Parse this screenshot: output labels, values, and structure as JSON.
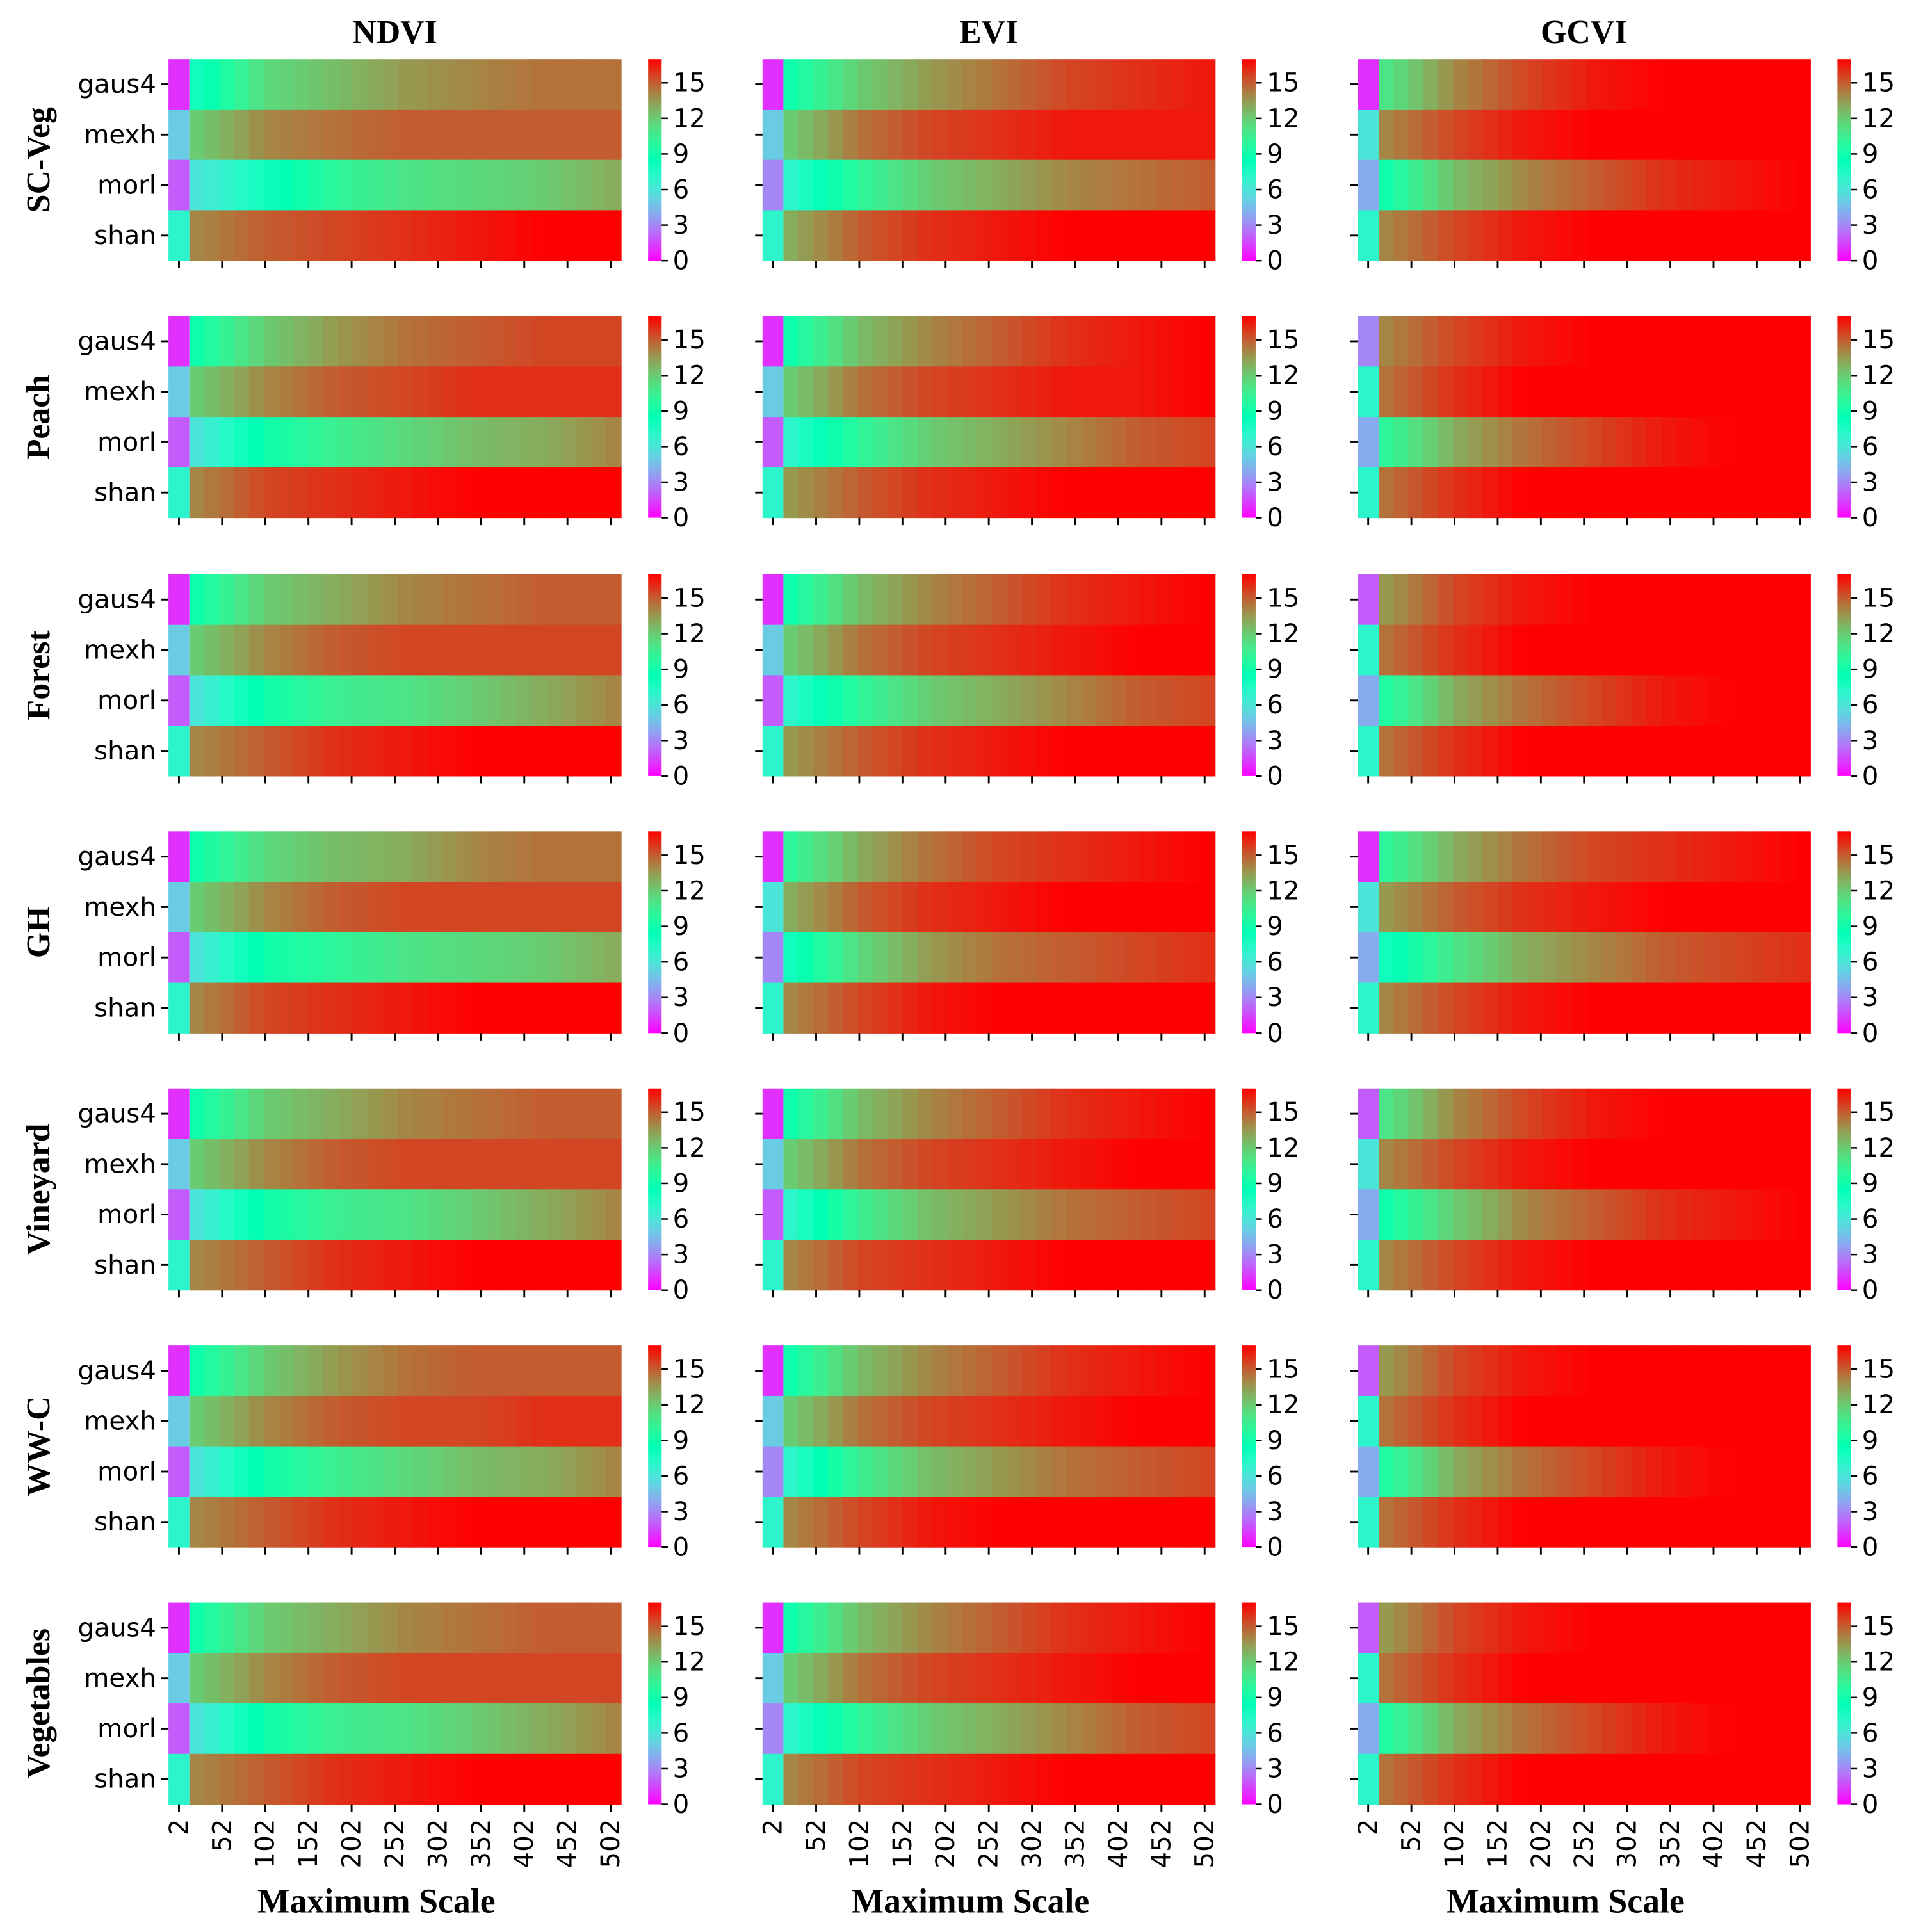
{
  "chart_data": {
    "type": "heatmap",
    "column_titles": [
      "NDVI",
      "EVI",
      "GCVI"
    ],
    "row_titles": [
      "SC-Veg",
      "Peach",
      "Forest",
      "GH",
      "Vineyard",
      "WW-C",
      "Vegetables"
    ],
    "y_categories": [
      "gaus4",
      "mexh",
      "morl",
      "shan"
    ],
    "x_tick_labels": [
      "2",
      "52",
      "102",
      "152",
      "202",
      "252",
      "302",
      "352",
      "402",
      "452",
      "502"
    ],
    "xlabel": "Maximum Scale",
    "colorbar": {
      "min": 0,
      "max": 17,
      "ticks": [
        "0",
        "3",
        "6",
        "9",
        "12",
        "15"
      ],
      "colormap": "rainbow"
    },
    "panels": [
      [
        {
          "gaus4": [
            1,
            8,
            11.5,
            12.5,
            13.5,
            14,
            14.5,
            14.5
          ],
          "mexh": [
            5,
            12,
            14,
            14.5,
            15,
            15,
            15,
            15
          ],
          "morl": [
            2,
            6,
            8,
            10,
            11,
            11.5,
            12,
            13
          ],
          "shan": [
            7,
            14,
            15,
            15.5,
            16,
            16.5,
            17,
            17
          ]
        },
        {
          "gaus4": [
            1,
            9,
            12,
            13.5,
            14.5,
            15.5,
            16,
            16.5
          ],
          "mexh": [
            5,
            12,
            14.5,
            15.5,
            16,
            16.5,
            16.5,
            16.5
          ],
          "morl": [
            3,
            7,
            10,
            12,
            13,
            14,
            14.5,
            15
          ],
          "shan": [
            7,
            13,
            15,
            16,
            16.5,
            17,
            17,
            17
          ]
        },
        {
          "gaus4": [
            1,
            11,
            14,
            15.5,
            16.5,
            17,
            17,
            17
          ],
          "mexh": [
            6,
            14,
            15.5,
            16.5,
            17,
            17,
            17,
            17
          ],
          "morl": [
            4,
            9,
            12.5,
            14,
            15,
            16,
            16.5,
            17
          ],
          "shan": [
            7,
            14,
            15.5,
            16.5,
            17,
            17,
            17,
            17
          ]
        }
      ],
      [
        {
          "gaus4": [
            1,
            9,
            12,
            13.5,
            14.5,
            15,
            15.5,
            15.5
          ],
          "mexh": [
            5,
            12,
            14,
            15,
            15.5,
            16,
            16,
            16
          ],
          "morl": [
            2,
            6,
            9,
            10.5,
            11.5,
            12.5,
            13,
            14
          ],
          "shan": [
            7,
            14,
            15.5,
            16,
            16.5,
            17,
            17,
            17
          ]
        },
        {
          "gaus4": [
            1,
            9,
            12.5,
            14,
            15,
            16,
            16.5,
            17
          ],
          "mexh": [
            5,
            12,
            14.5,
            15.5,
            16,
            16.5,
            16.5,
            17
          ],
          "morl": [
            2,
            7,
            10,
            12,
            13,
            14,
            15,
            15.5
          ],
          "shan": [
            7,
            13.5,
            15,
            16,
            16.5,
            17,
            17,
            17
          ]
        },
        {
          "gaus4": [
            3,
            14,
            15.5,
            16.5,
            17,
            17,
            17,
            17
          ],
          "mexh": [
            7,
            14.5,
            16,
            17,
            17,
            17,
            17,
            17
          ],
          "morl": [
            4,
            10,
            13,
            14.5,
            15.5,
            16.5,
            17,
            17
          ],
          "shan": [
            7,
            14.5,
            16,
            17,
            17,
            17,
            17,
            17
          ]
        }
      ],
      [
        {
          "gaus4": [
            1,
            9,
            12,
            13,
            14,
            14.5,
            15,
            15
          ],
          "mexh": [
            5,
            12,
            14,
            15,
            15.5,
            15.5,
            15.5,
            15.5
          ],
          "morl": [
            2,
            6,
            9,
            10.5,
            11,
            12,
            13,
            14
          ],
          "shan": [
            7,
            14,
            15,
            16,
            16.5,
            17,
            17,
            17
          ]
        },
        {
          "gaus4": [
            1,
            9,
            12.5,
            14,
            15,
            16,
            16.5,
            17
          ],
          "mexh": [
            5,
            12,
            14.5,
            15.5,
            16,
            16.5,
            17,
            17
          ],
          "morl": [
            2,
            7,
            10,
            12,
            13,
            14,
            15,
            15.5
          ],
          "shan": [
            7,
            13.5,
            15,
            16,
            16.5,
            17,
            17,
            17
          ]
        },
        {
          "gaus4": [
            2,
            13.5,
            15.5,
            16.5,
            17,
            17,
            17,
            17
          ],
          "mexh": [
            7,
            14.5,
            16,
            17,
            17,
            17,
            17,
            17
          ],
          "morl": [
            4,
            9.5,
            13,
            14.5,
            15.5,
            16.5,
            17,
            17
          ],
          "shan": [
            7,
            14.5,
            16,
            17,
            17,
            17,
            17,
            17
          ]
        }
      ],
      [
        {
          "gaus4": [
            1,
            9,
            11.5,
            12.5,
            13,
            14,
            14.5,
            14.5
          ],
          "mexh": [
            5,
            12,
            14,
            15,
            15.5,
            15.5,
            15.5,
            15.5
          ],
          "morl": [
            2,
            6,
            9,
            10,
            11,
            11.5,
            12,
            13
          ],
          "shan": [
            7,
            14,
            15.5,
            16,
            16.5,
            17,
            17,
            17
          ]
        },
        {
          "gaus4": [
            1,
            10,
            13,
            14.5,
            15.5,
            16,
            16.5,
            17
          ],
          "mexh": [
            6,
            13,
            15,
            16,
            16.5,
            17,
            17,
            17
          ],
          "morl": [
            3,
            8,
            11.5,
            13.5,
            14.5,
            15,
            15.5,
            16
          ],
          "shan": [
            7,
            14,
            15.5,
            16.5,
            17,
            17,
            17,
            17
          ]
        },
        {
          "gaus4": [
            1,
            10,
            13,
            14.5,
            15.5,
            16,
            16.5,
            17
          ],
          "mexh": [
            6,
            13.5,
            15,
            16,
            16.5,
            17,
            17,
            17
          ],
          "morl": [
            4,
            8,
            11,
            13,
            14,
            15,
            15.5,
            16
          ],
          "shan": [
            7,
            14,
            15.5,
            16.5,
            17,
            17,
            17,
            17
          ]
        }
      ],
      [
        {
          "gaus4": [
            1,
            9,
            12,
            13,
            14,
            14.5,
            15,
            15
          ],
          "mexh": [
            5,
            12,
            14,
            15,
            15.5,
            15.5,
            15.5,
            15.5
          ],
          "morl": [
            2,
            6,
            9,
            10.5,
            11,
            12,
            13,
            14
          ],
          "shan": [
            7,
            14,
            15,
            16,
            16.5,
            17,
            17,
            17
          ]
        },
        {
          "gaus4": [
            1,
            9,
            12.5,
            14,
            15,
            16,
            16.5,
            17
          ],
          "mexh": [
            5,
            12,
            14.5,
            15.5,
            16,
            16.5,
            17,
            17
          ],
          "morl": [
            2,
            7,
            10.5,
            12.5,
            13.5,
            14.5,
            15,
            15.5
          ],
          "shan": [
            7,
            14,
            15.5,
            16,
            16.5,
            17,
            17,
            17
          ]
        },
        {
          "gaus4": [
            2,
            11,
            14,
            15.5,
            16.5,
            17,
            17,
            17
          ],
          "mexh": [
            6,
            14,
            15.5,
            16.5,
            17,
            17,
            17,
            17
          ],
          "morl": [
            4,
            9,
            12,
            14,
            15,
            16,
            16.5,
            17
          ],
          "shan": [
            7,
            14,
            15.5,
            16.5,
            17,
            17,
            17,
            17
          ]
        }
      ],
      [
        {
          "gaus4": [
            1,
            9,
            12,
            13.5,
            14.5,
            15,
            15,
            15
          ],
          "mexh": [
            5,
            12,
            14,
            15,
            15.5,
            15.5,
            16,
            16
          ],
          "morl": [
            2,
            6,
            9,
            10.5,
            11.5,
            12.5,
            13,
            14
          ],
          "shan": [
            7,
            14,
            15,
            16,
            16.5,
            17,
            17,
            17
          ]
        },
        {
          "gaus4": [
            1,
            9,
            12.5,
            14,
            15,
            16,
            16.5,
            17
          ],
          "mexh": [
            5,
            12,
            14.5,
            15.5,
            16,
            16.5,
            17,
            17
          ],
          "morl": [
            3,
            7,
            10.5,
            12.5,
            13.5,
            14.5,
            15,
            15.5
          ],
          "shan": [
            7,
            14,
            15.5,
            16.5,
            17,
            17,
            17,
            17
          ]
        },
        {
          "gaus4": [
            2,
            13.5,
            15.5,
            16.5,
            17,
            17,
            17,
            17
          ],
          "mexh": [
            7,
            14.5,
            16,
            17,
            17,
            17,
            17,
            17
          ],
          "morl": [
            4,
            9.5,
            13,
            14.5,
            15.5,
            16.5,
            17,
            17
          ],
          "shan": [
            7,
            14.5,
            16,
            17,
            17,
            17,
            17,
            17
          ]
        }
      ],
      [
        {
          "gaus4": [
            1,
            9,
            12,
            13,
            14,
            14.5,
            15,
            15
          ],
          "mexh": [
            5,
            12,
            14,
            15,
            15.5,
            15.5,
            15.5,
            15.5
          ],
          "morl": [
            2,
            6,
            9,
            10.5,
            11,
            12,
            13,
            14
          ],
          "shan": [
            7,
            14,
            15,
            16,
            16.5,
            17,
            17,
            17
          ]
        },
        {
          "gaus4": [
            1,
            9,
            12.5,
            14,
            15,
            16,
            16.5,
            17
          ],
          "mexh": [
            5,
            12,
            14.5,
            15.5,
            16,
            16.5,
            17,
            17
          ],
          "morl": [
            3,
            7,
            10,
            12,
            13,
            14,
            15,
            15.5
          ],
          "shan": [
            7,
            14,
            15.5,
            16,
            16.5,
            17,
            17,
            17
          ]
        },
        {
          "gaus4": [
            2,
            13.5,
            15.5,
            16.5,
            17,
            17,
            17,
            17
          ],
          "mexh": [
            7,
            14.5,
            16,
            17,
            17,
            17,
            17,
            17
          ],
          "morl": [
            4,
            9.5,
            13,
            14.5,
            15.5,
            16.5,
            17,
            17
          ],
          "shan": [
            7,
            14.5,
            16,
            17,
            17,
            17,
            17,
            17
          ]
        }
      ]
    ]
  }
}
